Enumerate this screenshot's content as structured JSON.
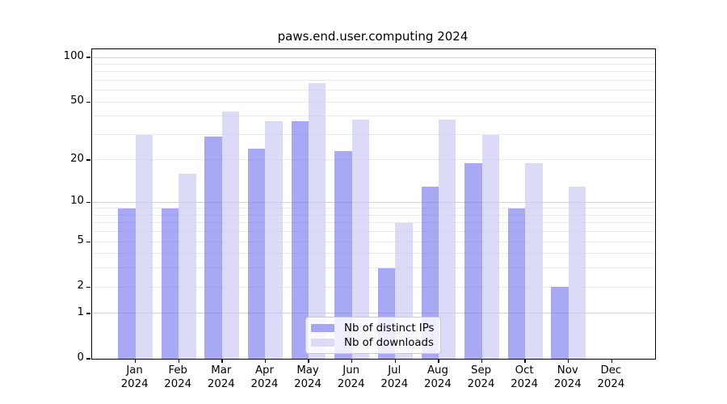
{
  "title": "paws.end.user.computing 2024",
  "chart_data": {
    "type": "bar",
    "title": "paws.end.user.computing 2024",
    "categories": [
      "Jan",
      "Feb",
      "Mar",
      "Apr",
      "May",
      "Jun",
      "Jul",
      "Aug",
      "Sep",
      "Oct",
      "Nov",
      "Dec"
    ],
    "x_tick_second_line": "2024",
    "series": [
      {
        "name": "Nb of distinct IPs",
        "values": [
          9,
          9,
          29,
          24,
          37,
          23,
          3,
          13,
          19,
          9,
          2,
          0
        ],
        "color": "#a6a6f5",
        "fill": "rgba(110,110,238,0.6)"
      },
      {
        "name": "Nb of downloads",
        "values": [
          30,
          16,
          43,
          37,
          67,
          38,
          7,
          38,
          30,
          19,
          13,
          0
        ],
        "color": "#dbdbf8",
        "fill": "rgba(200,200,245,0.65)"
      }
    ],
    "xlabel": "",
    "ylabel": "",
    "y_scale": "log1p",
    "ylim": [
      0,
      113
    ],
    "y_ticks": [
      0,
      1,
      2,
      5,
      10,
      20,
      50,
      100
    ],
    "gridlines": {
      "minor": [
        2,
        3,
        4,
        5,
        6,
        7,
        8,
        9,
        20,
        30,
        40,
        50,
        60,
        70,
        80,
        90
      ],
      "major": [
        1,
        10,
        100
      ],
      "minor_color": "#ebebeb",
      "major_color": "#d4d4d4"
    },
    "legend": {
      "position": "lower center",
      "entries": [
        "Nb of distinct IPs",
        "Nb of downloads"
      ]
    },
    "colors": {
      "background": "#ffffff",
      "spine": "#000000",
      "text": "#000000"
    }
  }
}
